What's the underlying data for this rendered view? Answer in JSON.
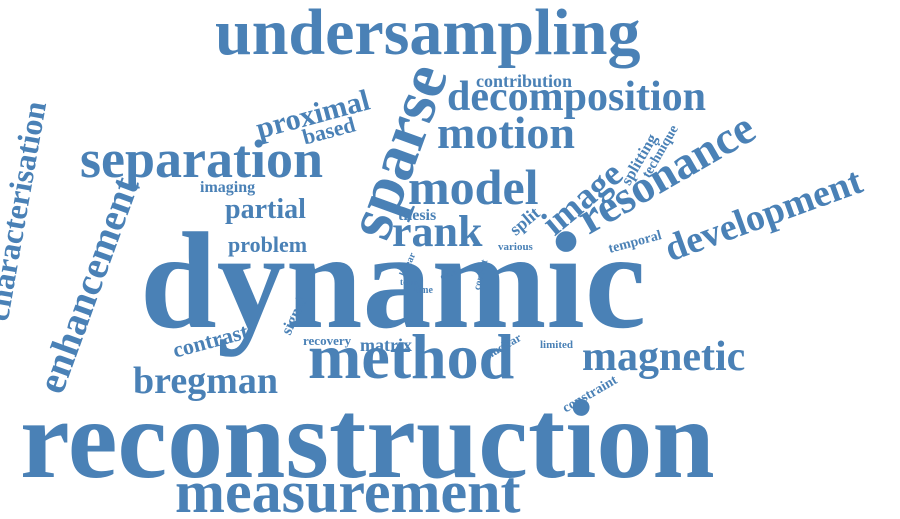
{
  "color": "#4a81b6",
  "words": [
    {
      "id": "dynamic",
      "text": "dynamic"
    },
    {
      "id": "reconstruction",
      "text": "reconstruction"
    },
    {
      "id": "undersampling",
      "text": "undersampling"
    },
    {
      "id": "measurement",
      "text": "measurement"
    },
    {
      "id": "method",
      "text": "method"
    },
    {
      "id": "sparse",
      "text": "sparse"
    },
    {
      "id": "separation",
      "text": "separation"
    },
    {
      "id": "model",
      "text": "model"
    },
    {
      "id": "motion",
      "text": "motion"
    },
    {
      "id": "decomposition",
      "text": "decomposition"
    },
    {
      "id": "resonance",
      "text": "resonance"
    },
    {
      "id": "development",
      "text": "development"
    },
    {
      "id": "magnetic",
      "text": "magnetic"
    },
    {
      "id": "enhancement",
      "text": "enhancement"
    },
    {
      "id": "characterisation",
      "text": "characterisation"
    },
    {
      "id": "rank",
      "text": "rank"
    },
    {
      "id": "image",
      "text": "image"
    },
    {
      "id": "bregman",
      "text": "bregman"
    },
    {
      "id": "proximal",
      "text": "proximal"
    },
    {
      "id": "partial",
      "text": "partial"
    },
    {
      "id": "problem",
      "text": "problem"
    },
    {
      "id": "contrast",
      "text": "contrast"
    },
    {
      "id": "based",
      "text": "based"
    },
    {
      "id": "contribution",
      "text": "contribution"
    },
    {
      "id": "imaging",
      "text": "imaging"
    },
    {
      "id": "thesis",
      "text": "thesis"
    },
    {
      "id": "split",
      "text": "split"
    },
    {
      "id": "splitting",
      "text": "splitting"
    },
    {
      "id": "technique",
      "text": "technique"
    },
    {
      "id": "temporal",
      "text": "temporal"
    },
    {
      "id": "various",
      "text": "various"
    },
    {
      "id": "signal",
      "text": "signal"
    },
    {
      "id": "recovery",
      "text": "recovery"
    },
    {
      "id": "matrix",
      "text": "matrix"
    },
    {
      "id": "nuclear",
      "text": "nuclear"
    },
    {
      "id": "limited",
      "text": "limited"
    },
    {
      "id": "constraint",
      "text": "constraint"
    },
    {
      "id": "linear",
      "text": "linear"
    },
    {
      "id": "data",
      "text": "data"
    },
    {
      "id": "term",
      "text": "term"
    },
    {
      "id": "time",
      "text": "time"
    },
    {
      "id": "context",
      "text": "context"
    }
  ]
}
